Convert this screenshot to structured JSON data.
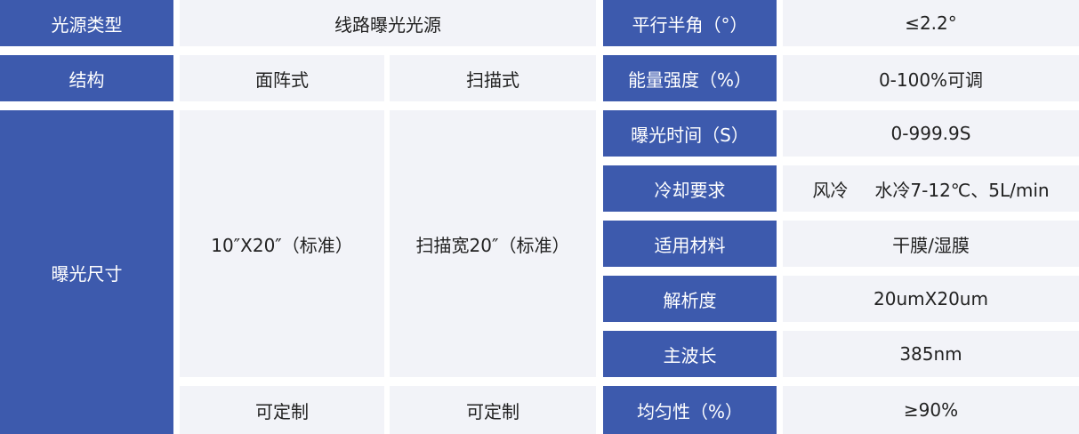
{
  "colors": {
    "header_bg": "#3d5aad",
    "cell_bg": "#f2f3f8"
  },
  "rows": {
    "light_source": {
      "label": "光源类型",
      "value": "线路曝光光源"
    },
    "structure": {
      "label": "结构",
      "area": "面阵式",
      "scan": "扫描式"
    },
    "exposure_size": {
      "label": "曝光尺寸",
      "area": "10″X20″（标准）",
      "scan": "扫描宽20″（标准）",
      "area_custom": "可定制",
      "scan_custom": "可定制"
    }
  },
  "specs": [
    {
      "label": "平行半角（°）",
      "value": "≤2.2°"
    },
    {
      "label": "能量强度（%）",
      "value": "0-100%可调"
    },
    {
      "label": "曝光时间（S）",
      "value": "0-999.9S"
    },
    {
      "label": "冷却要求",
      "value": "风冷",
      "value2": "水冷7-12℃、5L/min"
    },
    {
      "label": "适用材料",
      "value": "干膜/湿膜"
    },
    {
      "label": "解析度",
      "value": "20umX20um"
    },
    {
      "label": "主波长",
      "value": "385nm"
    },
    {
      "label": "均匀性（%）",
      "value": "≥90%"
    }
  ]
}
